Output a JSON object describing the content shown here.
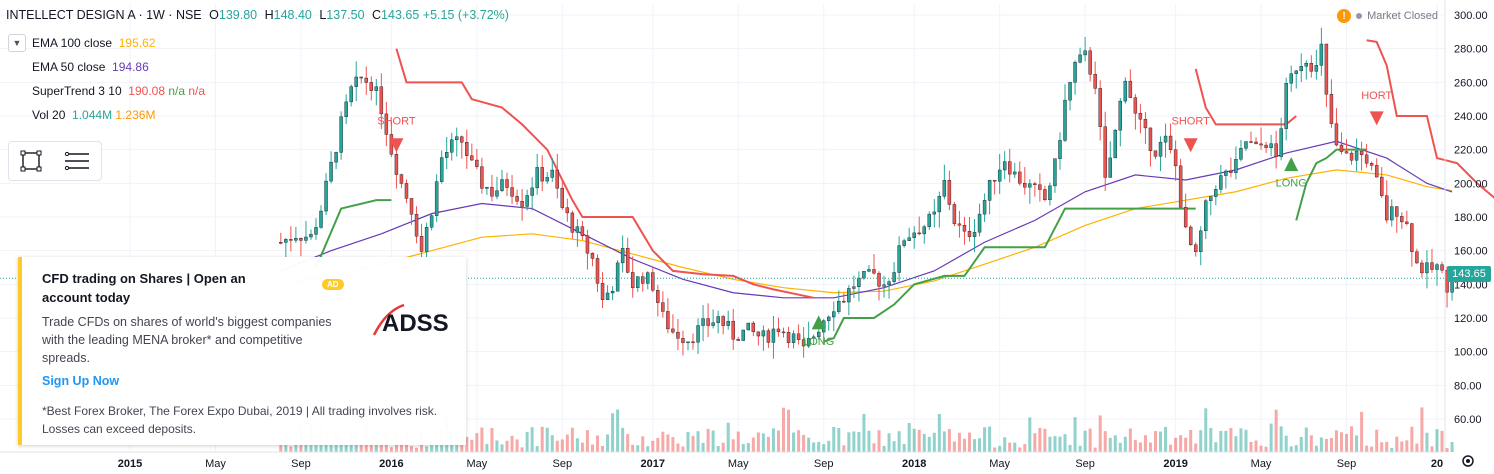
{
  "header": {
    "symbol": "INTELLECT DESIGN A · 1W · NSE",
    "open_label": "O",
    "open": "139.80",
    "high_label": "H",
    "high": "148.40",
    "low_label": "L",
    "low": "137.50",
    "close_label": "C",
    "close": "143.65",
    "change": "+5.15 (+3.72%)"
  },
  "indicators": {
    "ema100": {
      "label": "EMA 100 close",
      "value": "195.62",
      "color": "#ffb300"
    },
    "ema50": {
      "label": "EMA 50 close",
      "value": "194.86",
      "color": "#673ab7"
    },
    "supertrend": {
      "label": "SuperTrend 3 10",
      "value": "190.08",
      "na1": "n/a",
      "na2": "n/a",
      "color": "#ef5350"
    },
    "vol": {
      "label": "Vol 20",
      "value1": "1.044M",
      "value2": "1.236M",
      "color1": "#26a69a",
      "color2": "#ff9800"
    }
  },
  "status": {
    "market": "Market Closed",
    "warning_icon": "!"
  },
  "ad": {
    "title": "CFD trading on Shares | Open an account today",
    "badge": "AD",
    "body": "Trade CFDs on shares of world's biggest companies with the leading MENA broker* and competitive spreads.",
    "cta": "Sign Up Now",
    "footnote": "*Best Forex Broker, The Forex Expo Dubai, 2019 | All trading involves risk. Losses can exceed deposits.",
    "logo_text": "ADSS"
  },
  "price_tag": "143.65",
  "chart_data": {
    "type": "candlestick",
    "ylim": [
      50,
      300
    ],
    "yticks": [
      60,
      80,
      100,
      120,
      140,
      160,
      180,
      200,
      220,
      240,
      260,
      280,
      300
    ],
    "xticks": [
      {
        "label": "2015",
        "t": 0.0
      },
      {
        "label": "May",
        "t": 17.0
      },
      {
        "label": "Sep",
        "t": 34.0
      },
      {
        "label": "2016",
        "t": 52.0
      },
      {
        "label": "May",
        "t": 69.0
      },
      {
        "label": "Sep",
        "t": 86.0
      },
      {
        "label": "2017",
        "t": 104.0
      },
      {
        "label": "May",
        "t": 121.0
      },
      {
        "label": "Sep",
        "t": 138.0
      },
      {
        "label": "2018",
        "t": 156.0
      },
      {
        "label": "May",
        "t": 173.0
      },
      {
        "label": "Sep",
        "t": 190.0
      },
      {
        "label": "2019",
        "t": 208.0
      },
      {
        "label": "May",
        "t": 225.0
      },
      {
        "label": "Sep",
        "t": 242.0
      },
      {
        "label": "20",
        "t": 260.0
      }
    ],
    "close_path": [
      [
        30,
        165
      ],
      [
        33,
        170
      ],
      [
        36,
        168
      ],
      [
        38,
        185
      ],
      [
        40,
        210
      ],
      [
        42,
        235
      ],
      [
        44,
        255
      ],
      [
        46,
        262
      ],
      [
        48,
        260
      ],
      [
        50,
        245
      ],
      [
        52,
        220
      ],
      [
        54,
        200
      ],
      [
        56,
        185
      ],
      [
        58,
        160
      ],
      [
        60,
        185
      ],
      [
        62,
        215
      ],
      [
        64,
        222
      ],
      [
        66,
        225
      ],
      [
        68,
        210
      ],
      [
        70,
        200
      ],
      [
        72,
        195
      ],
      [
        75,
        200
      ],
      [
        78,
        190
      ],
      [
        81,
        205
      ],
      [
        84,
        205
      ],
      [
        86,
        185
      ],
      [
        88,
        175
      ],
      [
        90,
        165
      ],
      [
        92,
        155
      ],
      [
        94,
        130
      ],
      [
        96,
        140
      ],
      [
        98,
        158
      ],
      [
        100,
        140
      ],
      [
        102,
        145
      ],
      [
        104,
        140
      ],
      [
        106,
        120
      ],
      [
        108,
        112
      ],
      [
        111,
        108
      ],
      [
        114,
        115
      ],
      [
        117,
        120
      ],
      [
        120,
        110
      ],
      [
        123,
        112
      ],
      [
        126,
        108
      ],
      [
        129,
        115
      ],
      [
        132,
        108
      ],
      [
        134,
        100
      ],
      [
        136,
        110
      ],
      [
        138,
        120
      ],
      [
        140,
        128
      ],
      [
        142,
        132
      ],
      [
        144,
        140
      ],
      [
        146,
        143
      ],
      [
        148,
        145
      ],
      [
        150,
        140
      ],
      [
        152,
        150
      ],
      [
        154,
        168
      ],
      [
        156,
        172
      ],
      [
        158,
        175
      ],
      [
        160,
        180
      ],
      [
        162,
        200
      ],
      [
        164,
        178
      ],
      [
        166,
        168
      ],
      [
        168,
        175
      ],
      [
        170,
        190
      ],
      [
        172,
        205
      ],
      [
        174,
        215
      ],
      [
        176,
        205
      ],
      [
        178,
        200
      ],
      [
        180,
        195
      ],
      [
        182,
        190
      ],
      [
        184,
        210
      ],
      [
        186,
        248
      ],
      [
        188,
        270
      ],
      [
        190,
        275
      ],
      [
        192,
        260
      ],
      [
        194,
        200
      ],
      [
        196,
        230
      ],
      [
        198,
        265
      ],
      [
        200,
        240
      ],
      [
        202,
        228
      ],
      [
        204,
        220
      ],
      [
        206,
        225
      ],
      [
        208,
        210
      ],
      [
        210,
        170
      ],
      [
        212,
        155
      ],
      [
        214,
        185
      ],
      [
        216,
        200
      ],
      [
        218,
        205
      ],
      [
        220,
        210
      ],
      [
        222,
        225
      ],
      [
        224,
        220
      ],
      [
        226,
        225
      ],
      [
        228,
        215
      ],
      [
        230,
        255
      ],
      [
        232,
        270
      ],
      [
        234,
        275
      ],
      [
        236,
        268
      ],
      [
        237,
        280
      ],
      [
        238,
        250
      ],
      [
        240,
        220
      ],
      [
        242,
        215
      ],
      [
        244,
        218
      ],
      [
        246,
        215
      ],
      [
        248,
        200
      ],
      [
        250,
        180
      ],
      [
        252,
        185
      ],
      [
        254,
        175
      ],
      [
        256,
        152
      ],
      [
        258,
        148
      ],
      [
        260,
        150
      ],
      [
        262,
        140
      ],
      [
        263,
        143.65
      ]
    ],
    "ema50_path": [
      [
        30,
        148
      ],
      [
        40,
        160
      ],
      [
        50,
        170
      ],
      [
        60,
        182
      ],
      [
        70,
        188
      ],
      [
        80,
        185
      ],
      [
        90,
        170
      ],
      [
        100,
        155
      ],
      [
        110,
        143
      ],
      [
        120,
        135
      ],
      [
        130,
        132
      ],
      [
        140,
        132
      ],
      [
        150,
        138
      ],
      [
        160,
        148
      ],
      [
        170,
        165
      ],
      [
        180,
        178
      ],
      [
        190,
        195
      ],
      [
        200,
        205
      ],
      [
        210,
        202
      ],
      [
        220,
        208
      ],
      [
        230,
        218
      ],
      [
        240,
        225
      ],
      [
        250,
        215
      ],
      [
        258,
        200
      ],
      [
        263,
        194.86
      ]
    ],
    "ema100_path": [
      [
        30,
        140
      ],
      [
        40,
        145
      ],
      [
        50,
        152
      ],
      [
        60,
        160
      ],
      [
        70,
        168
      ],
      [
        80,
        170
      ],
      [
        90,
        166
      ],
      [
        100,
        158
      ],
      [
        110,
        150
      ],
      [
        120,
        143
      ],
      [
        130,
        138
      ],
      [
        140,
        135
      ],
      [
        150,
        136
      ],
      [
        160,
        142
      ],
      [
        170,
        152
      ],
      [
        180,
        162
      ],
      [
        190,
        175
      ],
      [
        200,
        185
      ],
      [
        210,
        190
      ],
      [
        220,
        195
      ],
      [
        230,
        203
      ],
      [
        240,
        208
      ],
      [
        250,
        205
      ],
      [
        258,
        198
      ],
      [
        263,
        195.62
      ]
    ],
    "supertrend": [
      {
        "color": "#43a047",
        "points": [
          [
            37,
            150
          ],
          [
            42,
            185
          ],
          [
            49,
            190
          ],
          [
            52,
            190
          ]
        ]
      },
      {
        "color": "#ef5350",
        "points": [
          [
            53,
            280
          ],
          [
            55,
            260
          ],
          [
            66,
            260
          ],
          [
            68,
            250
          ],
          [
            74,
            245
          ],
          [
            78,
            235
          ],
          [
            83,
            220
          ],
          [
            88,
            190
          ],
          [
            90,
            180
          ],
          [
            100,
            180
          ],
          [
            104,
            160
          ],
          [
            108,
            148
          ],
          [
            114,
            146
          ],
          [
            120,
            145
          ],
          [
            124,
            140
          ],
          [
            128,
            137
          ],
          [
            136,
            132
          ]
        ]
      },
      {
        "color": "#43a047",
        "points": [
          [
            138,
            106
          ],
          [
            140,
            108
          ],
          [
            142,
            120
          ],
          [
            148,
            120
          ],
          [
            152,
            128
          ],
          [
            156,
            140
          ],
          [
            162,
            145
          ],
          [
            166,
            145
          ],
          [
            170,
            162
          ],
          [
            182,
            162
          ],
          [
            186,
            185
          ],
          [
            212,
            185
          ]
        ]
      },
      {
        "color": "#ef5350",
        "points": [
          [
            212,
            268
          ],
          [
            214,
            245
          ],
          [
            216,
            235
          ],
          [
            230,
            235
          ],
          [
            232,
            240
          ]
        ]
      },
      {
        "color": "#43a047",
        "points": [
          [
            232,
            178
          ],
          [
            234,
            200
          ],
          [
            236,
            212
          ],
          [
            238,
            215
          ],
          [
            240,
            220
          ],
          [
            246,
            220
          ]
        ]
      },
      {
        "color": "#ef5350",
        "points": [
          [
            246,
            285
          ],
          [
            248,
            284
          ],
          [
            250,
            270
          ],
          [
            252,
            240
          ],
          [
            258,
            240
          ],
          [
            260,
            215
          ],
          [
            264,
            212
          ],
          [
            268,
            200
          ],
          [
            272,
            190
          ]
        ]
      }
    ],
    "signals": [
      {
        "label": "SHORT",
        "type": "short",
        "t": 53,
        "price": 222,
        "label_price": 235
      },
      {
        "label": "LONG",
        "type": "long",
        "t": 137,
        "price": 118,
        "label_price": 104
      },
      {
        "label": "SHORT",
        "type": "short",
        "t": 211,
        "price": 222,
        "label_price": 235
      },
      {
        "label": "LONG",
        "type": "long",
        "t": 231,
        "price": 212,
        "label_price": 198
      },
      {
        "label": "HORT",
        "type": "short",
        "t": 248,
        "price": 238,
        "label_price": 250
      }
    ],
    "current_price": 143.65
  }
}
